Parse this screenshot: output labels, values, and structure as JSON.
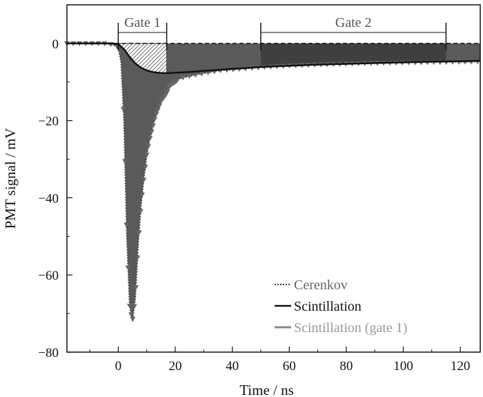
{
  "chart_data": {
    "type": "line",
    "xlabel": "Time / ns",
    "ylabel": "PMT signal / mV",
    "xlim": [
      -18,
      127
    ],
    "ylim": [
      -80,
      10
    ],
    "xticks": [
      0,
      20,
      40,
      60,
      80,
      100,
      120
    ],
    "xtick_labels": [
      "0",
      "20",
      "40",
      "60",
      "80",
      "100",
      "120"
    ],
    "yticks": [
      0,
      -20,
      -40,
      -60,
      -80
    ],
    "ytick_labels": [
      "0",
      "−20",
      "−40",
      "−60",
      "−80"
    ],
    "grid": false,
    "legend_position": "bottom-right",
    "gates": [
      {
        "label": "Gate 1",
        "start": 0,
        "end": 17
      },
      {
        "label": "Gate 2",
        "start": 50,
        "end": 115
      }
    ],
    "series": [
      {
        "name": "Cerenkov",
        "style": "dotted-triangles",
        "color": "#555555",
        "x": [
          -18,
          -10,
          -5,
          -2,
          0,
          1,
          2,
          3,
          4,
          5,
          6,
          7,
          8,
          9,
          10,
          11,
          12,
          13,
          14,
          15,
          16,
          17,
          18,
          20,
          22,
          25,
          28,
          32,
          36,
          40,
          45,
          50,
          60,
          70,
          80,
          90,
          100,
          110,
          120,
          127
        ],
        "y": [
          0,
          0,
          0,
          -0.3,
          -1,
          -5,
          -20,
          -50,
          -68,
          -72,
          -66,
          -52,
          -42,
          -35,
          -29,
          -25,
          -22,
          -19,
          -17,
          -15,
          -14,
          -13,
          -11,
          -10,
          -9,
          -8.5,
          -8,
          -7.5,
          -7,
          -6.8,
          -6.5,
          -6.2,
          -5.8,
          -5.5,
          -5.3,
          -5.1,
          -5,
          -4.9,
          -4.8,
          -4.7
        ]
      },
      {
        "name": "Scintillation",
        "style": "solid",
        "color": "#111111",
        "x": [
          -18,
          -10,
          -5,
          -2,
          0,
          2,
          4,
          6,
          8,
          10,
          12,
          14,
          16,
          18,
          20,
          25,
          30,
          40,
          50,
          60,
          70,
          80,
          90,
          100,
          110,
          120,
          127
        ],
        "y": [
          0,
          0,
          0,
          0,
          -0.2,
          -1.5,
          -3.5,
          -5.2,
          -6.3,
          -7,
          -7.4,
          -7.6,
          -7.7,
          -7.7,
          -7.6,
          -7.4,
          -7.1,
          -6.6,
          -6.1,
          -5.8,
          -5.5,
          -5.3,
          -5.1,
          -4.9,
          -4.7,
          -4.6,
          -4.5
        ]
      },
      {
        "name": "Scintillation (gate 1)",
        "style": "hatched-fill",
        "color": "#777777",
        "x": [
          0,
          2,
          4,
          6,
          8,
          10,
          12,
          14,
          16,
          17
        ],
        "y": [
          -0.2,
          -1.5,
          -3.5,
          -5.2,
          -6.3,
          -7,
          -7.4,
          -7.6,
          -7.7,
          -7.7
        ]
      }
    ],
    "cerenkov_legend_label": "Cerenkov",
    "scintillation_legend_label": "Scintillation",
    "scintillation_gate1_legend_label": "Scintillation (gate 1)"
  }
}
